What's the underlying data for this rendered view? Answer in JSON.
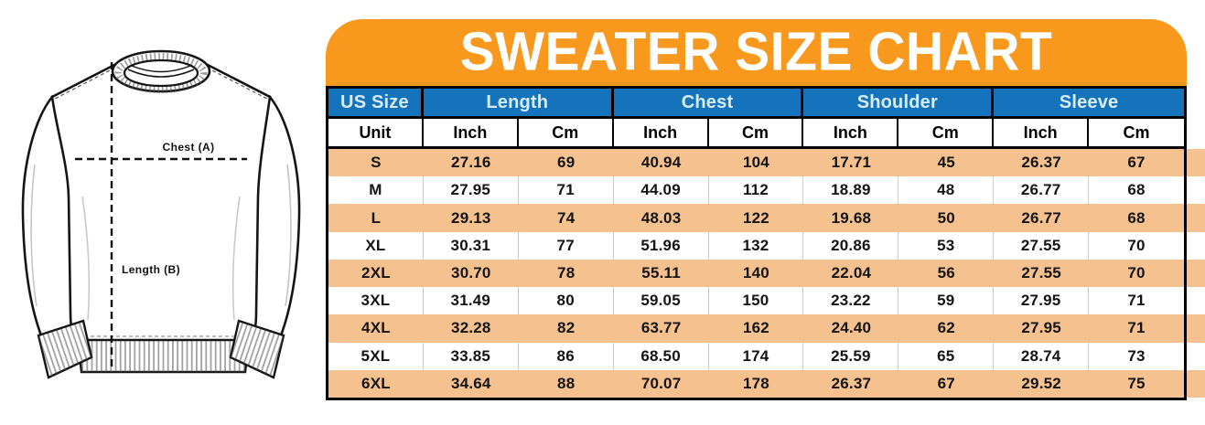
{
  "banner": {
    "title": "SWEATER SIZE CHART"
  },
  "diagram": {
    "chest_label": "Chest (A)",
    "length_label": "Length (B)"
  },
  "colors": {
    "banner_orange": "#F8981D",
    "header_blue": "#1573BC",
    "header_text": "#D9ECFA",
    "row_peach": "#F5C18F",
    "border_black": "#000000",
    "row_text": "#141414"
  },
  "chart_data": {
    "type": "table",
    "title": "SWEATER SIZE CHART",
    "column_groups": [
      {
        "label": "US Size",
        "span": 1
      },
      {
        "label": "Length",
        "span": 2
      },
      {
        "label": "Chest",
        "span": 2
      },
      {
        "label": "Shoulder",
        "span": 2
      },
      {
        "label": "Sleeve",
        "span": 2
      }
    ],
    "unit_row": [
      "Unit",
      "Inch",
      "Cm",
      "Inch",
      "Cm",
      "Inch",
      "Cm",
      "Inch",
      "Cm"
    ],
    "rows": [
      {
        "size": "S",
        "values": [
          "27.16",
          "69",
          "40.94",
          "104",
          "17.71",
          "45",
          "26.37",
          "67"
        ],
        "striped": true
      },
      {
        "size": "M",
        "values": [
          "27.95",
          "71",
          "44.09",
          "112",
          "18.89",
          "48",
          "26.77",
          "68"
        ],
        "striped": false
      },
      {
        "size": "L",
        "values": [
          "29.13",
          "74",
          "48.03",
          "122",
          "19.68",
          "50",
          "26.77",
          "68"
        ],
        "striped": true
      },
      {
        "size": "XL",
        "values": [
          "30.31",
          "77",
          "51.96",
          "132",
          "20.86",
          "53",
          "27.55",
          "70"
        ],
        "striped": false
      },
      {
        "size": "2XL",
        "values": [
          "30.70",
          "78",
          "55.11",
          "140",
          "22.04",
          "56",
          "27.55",
          "70"
        ],
        "striped": true
      },
      {
        "size": "3XL",
        "values": [
          "31.49",
          "80",
          "59.05",
          "150",
          "23.22",
          "59",
          "27.95",
          "71"
        ],
        "striped": false
      },
      {
        "size": "4XL",
        "values": [
          "32.28",
          "82",
          "63.77",
          "162",
          "24.40",
          "62",
          "27.95",
          "71"
        ],
        "striped": true
      },
      {
        "size": "5XL",
        "values": [
          "33.85",
          "86",
          "68.50",
          "174",
          "25.59",
          "65",
          "28.74",
          "73"
        ],
        "striped": false
      },
      {
        "size": "6XL",
        "values": [
          "34.64",
          "88",
          "70.07",
          "178",
          "26.37",
          "67",
          "29.52",
          "75"
        ],
        "striped": true
      }
    ]
  }
}
